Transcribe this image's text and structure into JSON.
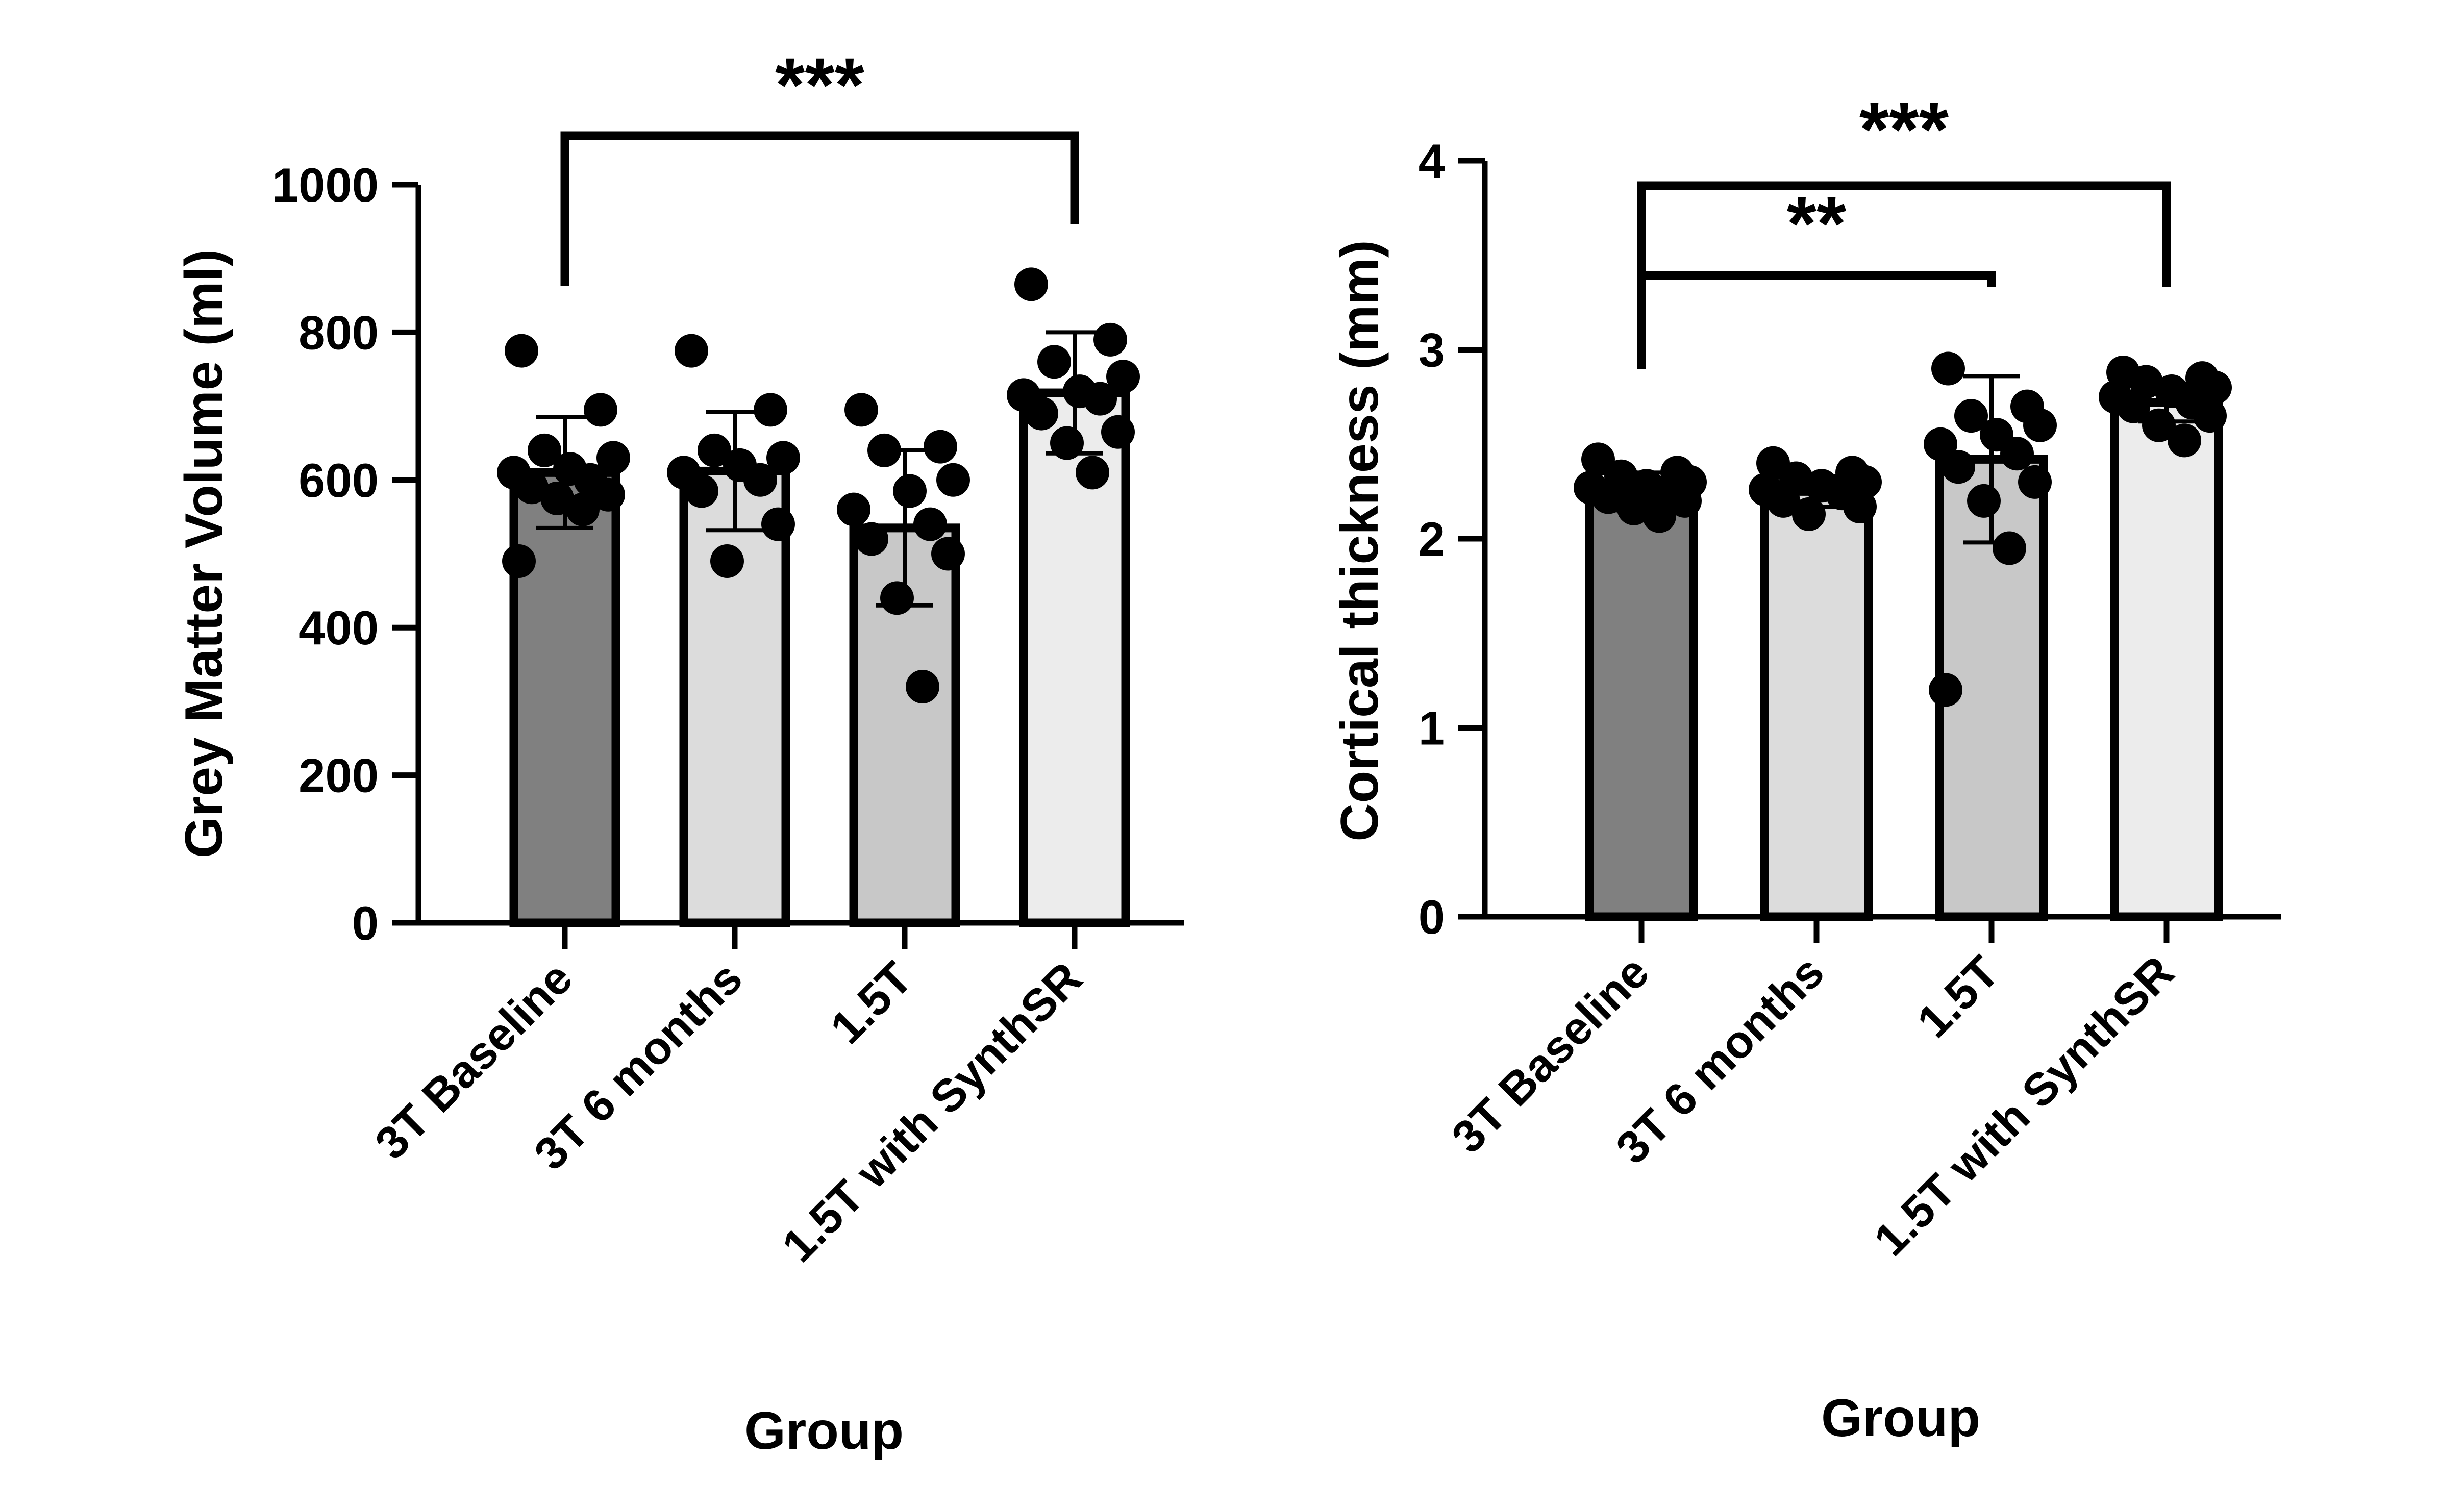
{
  "chart_data": [
    {
      "type": "bar",
      "id": "gmv",
      "ylabel": "Grey Matter Volume (ml)",
      "xlabel": "Group",
      "ylim": [
        0,
        1000
      ],
      "yticks": [
        "0",
        "200",
        "400",
        "600",
        "800",
        "1000"
      ],
      "categories": [
        "3T Baseline",
        "3T 6 months",
        "1.5T",
        "1.5T with SynthSR"
      ],
      "bar_colors": [
        "#808080",
        "#dcdcdc",
        "#c8c8c8",
        "#ececec"
      ],
      "means": [
        610,
        612,
        535,
        718
      ],
      "sd": [
        75,
        80,
        105,
        82
      ],
      "points": [
        [
          775,
          695,
          640,
          630,
          615,
          610,
          600,
          590,
          580,
          575,
          560,
          490
        ],
        [
          775,
          695,
          640,
          630,
          620,
          610,
          600,
          585,
          540,
          490
        ],
        [
          695,
          645,
          640,
          600,
          585,
          560,
          540,
          520,
          500,
          440,
          320
        ],
        [
          865,
          790,
          760,
          740,
          720,
          715,
          710,
          690,
          665,
          650,
          610
        ]
      ],
      "significance": [
        {
          "from": 0,
          "to": 3,
          "label": "***"
        }
      ]
    },
    {
      "type": "bar",
      "id": "ct",
      "ylabel": "Cortical thickness (mm)",
      "xlabel": "Group",
      "ylim": [
        0,
        4
      ],
      "yticks": [
        "0",
        "1",
        "2",
        "3",
        "4"
      ],
      "categories": [
        "3T Baseline",
        "3T 6 months",
        "1.5T",
        "1.5T with SynthSR"
      ],
      "bar_colors": [
        "#808080",
        "#dcdcdc",
        "#c8c8c8",
        "#ececec"
      ],
      "means": [
        2.25,
        2.25,
        2.42,
        2.72
      ],
      "sd": [
        0.1,
        0.08,
        0.44,
        0.1
      ],
      "points": [
        [
          2.42,
          2.35,
          2.33,
          2.3,
          2.28,
          2.27,
          2.25,
          2.22,
          2.2,
          2.16,
          2.12
        ],
        [
          2.4,
          2.35,
          2.32,
          2.3,
          2.28,
          2.26,
          2.24,
          2.2,
          2.17,
          2.13
        ],
        [
          2.9,
          2.7,
          2.65,
          2.6,
          2.55,
          2.5,
          2.45,
          2.38,
          2.3,
          2.2,
          1.95,
          1.2
        ],
        [
          2.88,
          2.85,
          2.83,
          2.8,
          2.78,
          2.75,
          2.72,
          2.7,
          2.65,
          2.6,
          2.52
        ]
      ],
      "significance": [
        {
          "from": 0,
          "to": 3,
          "label": "***"
        },
        {
          "from": 0,
          "to": 2,
          "label": "**"
        }
      ]
    }
  ]
}
